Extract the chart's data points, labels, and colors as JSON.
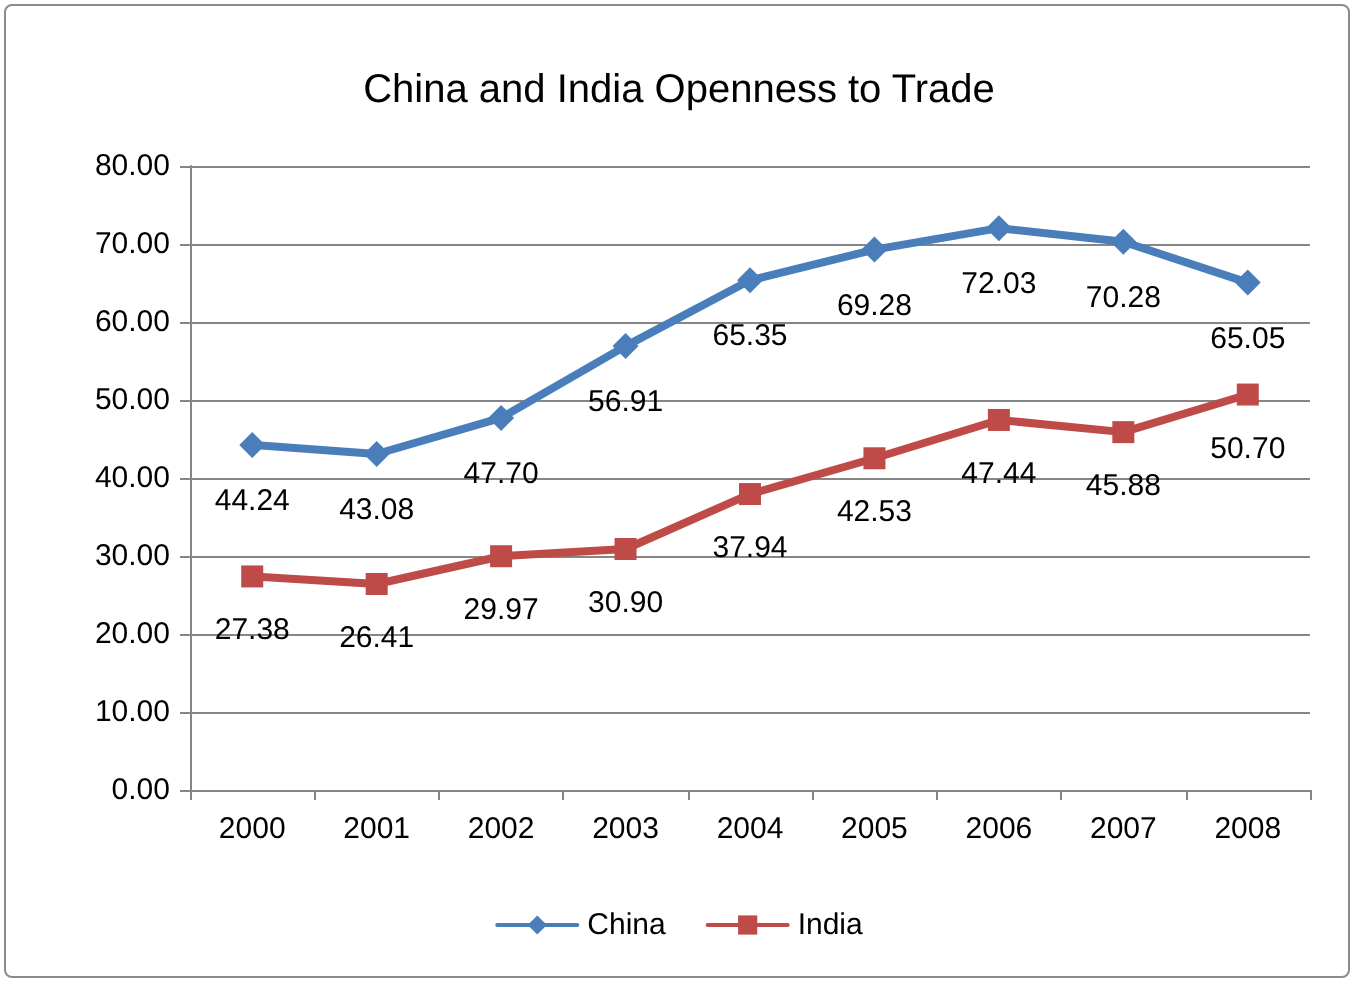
{
  "chart_data": {
    "type": "line",
    "title": "China and India Openness to Trade",
    "categories": [
      "2000",
      "2001",
      "2002",
      "2003",
      "2004",
      "2005",
      "2006",
      "2007",
      "2008"
    ],
    "series": [
      {
        "name": "China",
        "color": "#4a7ebb",
        "marker": "diamond",
        "values": [
          44.24,
          43.08,
          47.7,
          56.91,
          65.35,
          69.28,
          72.03,
          70.28,
          65.05
        ],
        "value_labels": [
          "44.24",
          "43.08",
          "47.70",
          "56.91",
          "65.35",
          "69.28",
          "72.03",
          "70.28",
          "65.05"
        ]
      },
      {
        "name": "India",
        "color": "#be4b48",
        "marker": "square",
        "values": [
          27.38,
          26.41,
          29.97,
          30.9,
          37.94,
          42.53,
          47.44,
          45.88,
          50.7
        ],
        "value_labels": [
          "27.38",
          "26.41",
          "29.97",
          "30.90",
          "37.94",
          "42.53",
          "47.44",
          "45.88",
          "50.70"
        ]
      }
    ],
    "ylim": [
      0,
      80
    ],
    "yticks": [
      {
        "value": 0,
        "label": "0.00"
      },
      {
        "value": 10,
        "label": "10.00"
      },
      {
        "value": 20,
        "label": "20.00"
      },
      {
        "value": 30,
        "label": "30.00"
      },
      {
        "value": 40,
        "label": "40.00"
      },
      {
        "value": 50,
        "label": "50.00"
      },
      {
        "value": 60,
        "label": "60.00"
      },
      {
        "value": 70,
        "label": "70.00"
      },
      {
        "value": 80,
        "label": "80.00"
      }
    ],
    "grid": "y",
    "legend": "bottom",
    "line_style": "solid"
  }
}
